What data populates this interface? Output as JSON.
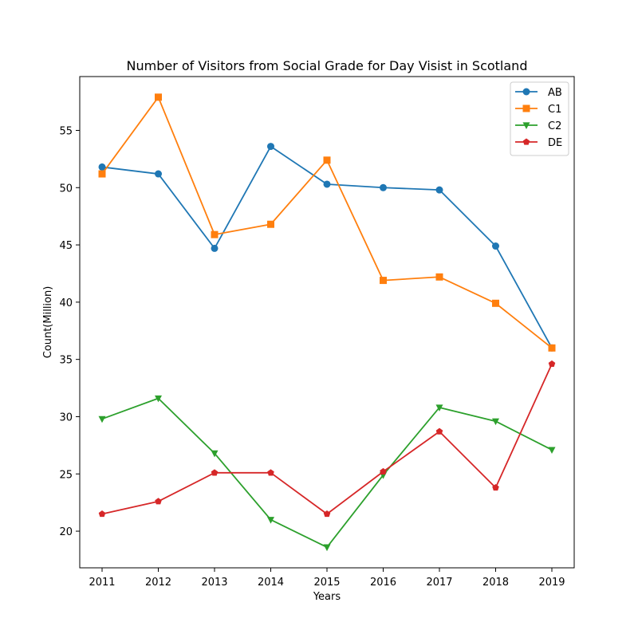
{
  "chart_data": {
    "type": "line",
    "title": "Number of Visitors from Social Grade for Day Visist in Scotland",
    "xlabel": "Years",
    "ylabel": "Count(Million)",
    "categories": [
      "2011",
      "2012",
      "2013",
      "2014",
      "2015",
      "2016",
      "2017",
      "2018",
      "2019"
    ],
    "ylim": [
      16.8,
      59.7
    ],
    "yticks": [
      20,
      25,
      30,
      35,
      40,
      45,
      50,
      55
    ],
    "grid": false,
    "legend_position": "top-right",
    "series": [
      {
        "name": "AB",
        "color": "#1f77b4",
        "marker": "circle",
        "values": [
          51.8,
          51.2,
          44.7,
          53.6,
          50.3,
          50.0,
          49.8,
          44.9,
          36.0
        ]
      },
      {
        "name": "C1",
        "color": "#ff7f0e",
        "marker": "square",
        "values": [
          51.2,
          57.9,
          45.9,
          46.8,
          52.4,
          41.9,
          42.2,
          39.9,
          36.0
        ]
      },
      {
        "name": "C2",
        "color": "#2ca02c",
        "marker": "triangle-down",
        "values": [
          29.8,
          31.6,
          26.8,
          21.0,
          18.6,
          24.9,
          30.8,
          29.6,
          27.1
        ]
      },
      {
        "name": "DE",
        "color": "#d62728",
        "marker": "pentagon",
        "values": [
          21.5,
          22.6,
          25.1,
          25.1,
          21.5,
          25.2,
          28.7,
          23.8,
          34.6
        ]
      }
    ]
  }
}
